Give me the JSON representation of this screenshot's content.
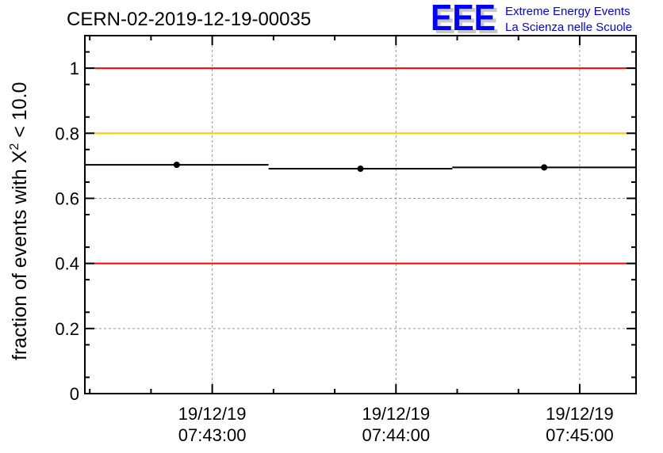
{
  "chart_data": {
    "type": "line",
    "title": "CERN-02-2019-12-19-00035",
    "ylabel_prefix": "fraction of events with ",
    "ylabel_symbol": "X",
    "ylabel_sup": "2",
    "ylabel_suffix": " < 10.0",
    "xlabel": "",
    "ylim": [
      0,
      1.1
    ],
    "xlim_seconds_from_0743": [
      -41.6,
      138.4
    ],
    "y_ticks": [
      "0",
      "0.2",
      "0.4",
      "0.6",
      "0.8",
      "1"
    ],
    "y_tick_values": [
      0,
      0.2,
      0.4,
      0.6,
      0.8,
      1
    ],
    "x_ticks": [
      {
        "date": "19/12/19",
        "time": "07:43:00",
        "seconds": 0
      },
      {
        "date": "19/12/19",
        "time": "07:44:00",
        "seconds": 60
      },
      {
        "date": "19/12/19",
        "time": "07:45:00",
        "seconds": 120
      }
    ],
    "grid": true,
    "reference_lines": [
      {
        "y": 1.0,
        "color": "#ff0000"
      },
      {
        "y": 0.8,
        "color": "#ffcc00"
      },
      {
        "y": 0.4,
        "color": "#ff0000"
      }
    ],
    "bins": [
      {
        "start": -41.6,
        "end": 18.4,
        "value": 0.703
      },
      {
        "start": 18.4,
        "end": 78.4,
        "value": 0.691
      },
      {
        "start": 78.4,
        "end": 138.4,
        "value": 0.695
      }
    ]
  },
  "logo": {
    "text": "EEE",
    "line1": "Extreme Energy Events",
    "line2": "La Scienza nelle Scuole",
    "color": "#0000ff"
  }
}
